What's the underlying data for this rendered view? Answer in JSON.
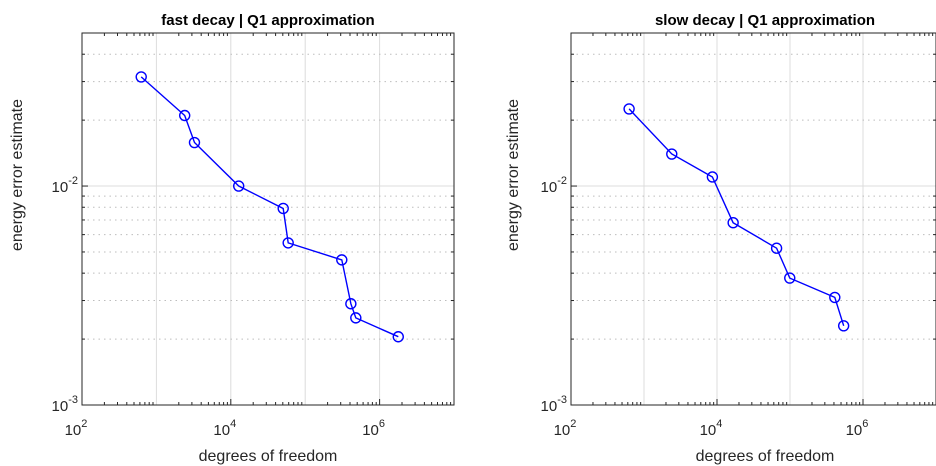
{
  "chart_data": [
    {
      "type": "line",
      "title": "fast decay | Q1 approximation",
      "xlabel": "degrees of freedom",
      "ylabel": "energy error estimate",
      "xscale": "log",
      "yscale": "log",
      "xlim": [
        100,
        10000000
      ],
      "ylim": [
        0.001,
        0.05
      ],
      "xticks": [
        {
          "base": "10",
          "exp": "2"
        },
        {
          "base": "10",
          "exp": "4"
        },
        {
          "base": "10",
          "exp": "6"
        }
      ],
      "yticks": [
        {
          "base": "10",
          "exp": "-3"
        },
        {
          "base": "10",
          "exp": "-2"
        }
      ],
      "grid": true,
      "line_color": "#0000ff",
      "series": [
        {
          "marker": "circle",
          "x": [
            625,
            2401,
            3249,
            12769,
            50625,
            59049,
            310249,
            410881,
            478864,
            1782225
          ],
          "y": [
            0.0315,
            0.021,
            0.0158,
            0.01,
            0.0079,
            0.0055,
            0.0046,
            0.0029,
            0.0025,
            0.00205
          ]
        }
      ]
    },
    {
      "type": "line",
      "title": "slow decay | Q1 approximation",
      "xlabel": "degrees of freedom",
      "ylabel": "energy error estimate",
      "xscale": "log",
      "yscale": "log",
      "xlim": [
        100,
        10000000
      ],
      "ylim": [
        0.001,
        0.05
      ],
      "xticks": [
        {
          "base": "10",
          "exp": "2"
        },
        {
          "base": "10",
          "exp": "4"
        },
        {
          "base": "10",
          "exp": "6"
        }
      ],
      "yticks": [
        {
          "base": "10",
          "exp": "-3"
        },
        {
          "base": "10",
          "exp": "-2"
        }
      ],
      "grid": true,
      "line_color": "#0000ff",
      "series": [
        {
          "marker": "circle",
          "x": [
            625,
            2401,
            8649,
            16641,
            65536,
            99225,
            410881,
            543169
          ],
          "y": [
            0.0225,
            0.014,
            0.011,
            0.0068,
            0.0052,
            0.0038,
            0.0031,
            0.0023
          ]
        }
      ]
    }
  ]
}
